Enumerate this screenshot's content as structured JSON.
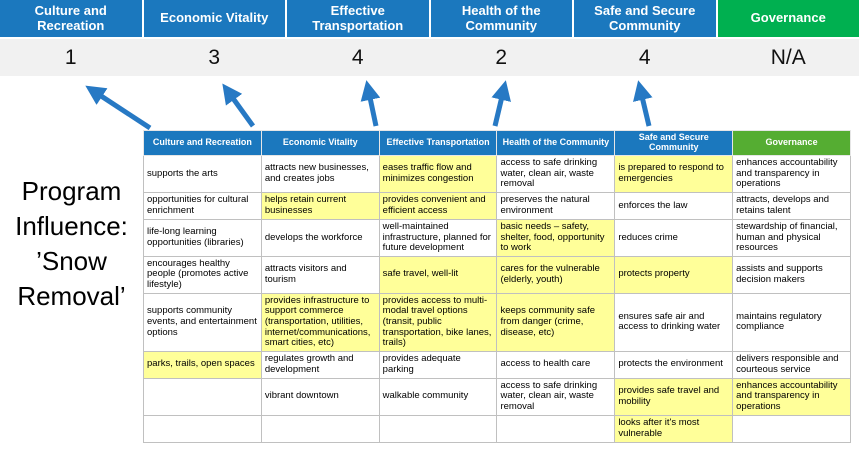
{
  "program_label": "Program Influence: ’Snow Removal’",
  "colors": {
    "blue": "#1B78BE",
    "green_top": "#00B050",
    "green_table": "#55AD32",
    "highlight": "#FFFF99",
    "arrow": "#2779C4",
    "band": "#F1F1F1"
  },
  "top": {
    "categories": [
      {
        "label": "Culture and Recreation",
        "score": "1"
      },
      {
        "label": "Economic Vitality",
        "score": "3"
      },
      {
        "label": "Effective Transportation",
        "score": "4"
      },
      {
        "label": "Health of the Community",
        "score": "2"
      },
      {
        "label": "Safe and Secure Community",
        "score": "4"
      },
      {
        "label": "Governance",
        "score": "N/A"
      }
    ]
  },
  "table": {
    "headers": [
      "Culture and Recreation",
      "Economic Vitality",
      "Effective Transportation",
      "Health of the Community",
      "Safe and Secure Community",
      "Governance"
    ],
    "rows": [
      [
        {
          "text": "supports the arts",
          "hl": false
        },
        {
          "text": "attracts new businesses, and creates jobs",
          "hl": false
        },
        {
          "text": "eases traffic flow and minimizes congestion",
          "hl": true
        },
        {
          "text": "access to safe drinking water, clean air, waste removal",
          "hl": false
        },
        {
          "text": "is prepared to respond to emergencies",
          "hl": true
        },
        {
          "text": "enhances accountability and transparency in operations",
          "hl": false
        }
      ],
      [
        {
          "text": "opportunities for cultural enrichment",
          "hl": false
        },
        {
          "text": "helps retain current businesses",
          "hl": true
        },
        {
          "text": "provides convenient and efficient access",
          "hl": true
        },
        {
          "text": "preserves the natural environment",
          "hl": false
        },
        {
          "text": "enforces the law",
          "hl": false
        },
        {
          "text": "attracts, develops and retains talent",
          "hl": false
        }
      ],
      [
        {
          "text": "life-long learning opportunities (libraries)",
          "hl": false
        },
        {
          "text": "develops the workforce",
          "hl": false
        },
        {
          "text": "well-maintained infrastructure, planned for future development",
          "hl": false
        },
        {
          "text": "basic needs – safety, shelter, food, opportunity to work",
          "hl": true
        },
        {
          "text": "reduces crime",
          "hl": false
        },
        {
          "text": "stewardship of financial, human and physical resources",
          "hl": false
        }
      ],
      [
        {
          "text": "encourages healthy people (promotes active lifestyle)",
          "hl": false
        },
        {
          "text": "attracts visitors and tourism",
          "hl": false
        },
        {
          "text": "safe travel, well-lit",
          "hl": true
        },
        {
          "text": "cares for the vulnerable (elderly, youth)",
          "hl": true
        },
        {
          "text": "protects property",
          "hl": true
        },
        {
          "text": "assists and supports decision makers",
          "hl": false
        }
      ],
      [
        {
          "text": "supports community events, and entertainment options",
          "hl": false
        },
        {
          "text": "provides infrastructure to support commerce (transportation, utilities, internet/communications, smart cities, etc)",
          "hl": true
        },
        {
          "text": "provides access to multi-modal travel options (transit, public transportation, bike lanes, trails)",
          "hl": true
        },
        {
          "text": "keeps community safe from danger (crime, disease, etc)",
          "hl": true
        },
        {
          "text": "ensures safe air and access to drinking water",
          "hl": false
        },
        {
          "text": "maintains regulatory compliance",
          "hl": false
        }
      ],
      [
        {
          "text": "parks, trails, open spaces",
          "hl": true
        },
        {
          "text": "regulates growth and development",
          "hl": false
        },
        {
          "text": "provides adequate parking",
          "hl": false
        },
        {
          "text": "access to health care",
          "hl": false
        },
        {
          "text": "protects the environment",
          "hl": false
        },
        {
          "text": "delivers responsible and courteous service",
          "hl": false
        }
      ],
      [
        {
          "text": "",
          "hl": false
        },
        {
          "text": "vibrant downtown",
          "hl": false
        },
        {
          "text": "walkable community",
          "hl": false
        },
        {
          "text": "access to safe drinking water, clean air, waste removal",
          "hl": false
        },
        {
          "text": "provides safe travel and mobility",
          "hl": true
        },
        {
          "text": "enhances accountability and transparency in operations",
          "hl": true
        }
      ],
      [
        {
          "text": "",
          "hl": false
        },
        {
          "text": "",
          "hl": false
        },
        {
          "text": "",
          "hl": false
        },
        {
          "text": "",
          "hl": false
        },
        {
          "text": "looks after it's most vulnerable",
          "hl": true
        },
        {
          "text": "",
          "hl": false
        }
      ]
    ]
  }
}
